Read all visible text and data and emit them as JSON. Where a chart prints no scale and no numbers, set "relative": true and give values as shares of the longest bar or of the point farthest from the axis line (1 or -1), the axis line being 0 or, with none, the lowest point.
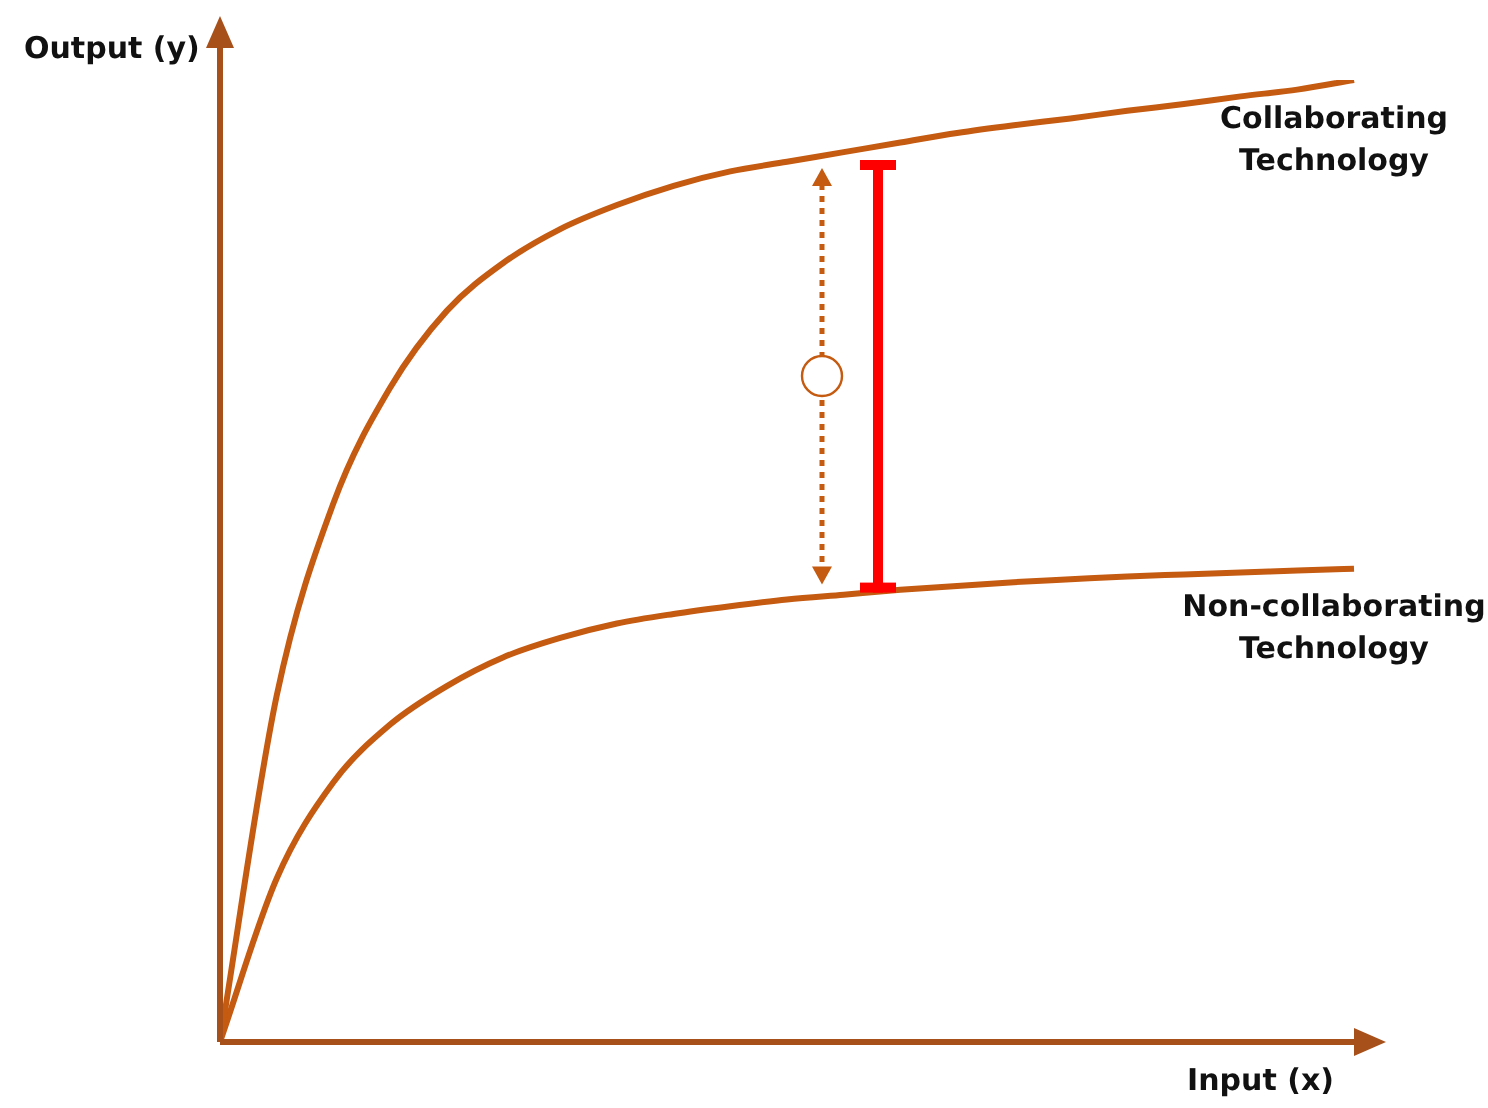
{
  "chart_data": {
    "type": "line",
    "relative": true,
    "xlabel": "Input (x)",
    "ylabel": "Output (y)",
    "grid": false,
    "legend": false,
    "marker": "none",
    "line_style": "solid",
    "categories": [
      null,
      null,
      null,
      null,
      null,
      null,
      null,
      null,
      null,
      null,
      null,
      null,
      null,
      null,
      null,
      null,
      null,
      null,
      null,
      null,
      null
    ],
    "series": [
      {
        "name": "Collaborating Technology",
        "color": "#c55a11",
        "values": [
          0,
          0.36,
          0.56,
          0.68,
          0.76,
          0.81,
          0.845,
          0.87,
          0.89,
          0.905,
          0.915,
          0.925,
          0.935,
          0.945,
          0.953,
          0.96,
          0.968,
          0.975,
          0.983,
          0.99,
          1
        ]
      },
      {
        "name": "Non-collaborating Technology",
        "color": "#c55a11",
        "values": [
          0,
          0.17,
          0.27,
          0.33,
          0.37,
          0.4,
          0.42,
          0.435,
          0.445,
          0.453,
          0.46,
          0.465,
          0.47,
          0.474,
          0.478,
          0.481,
          0.484,
          0.486,
          0.488,
          0.49,
          0.492
        ]
      }
    ]
  }
}
